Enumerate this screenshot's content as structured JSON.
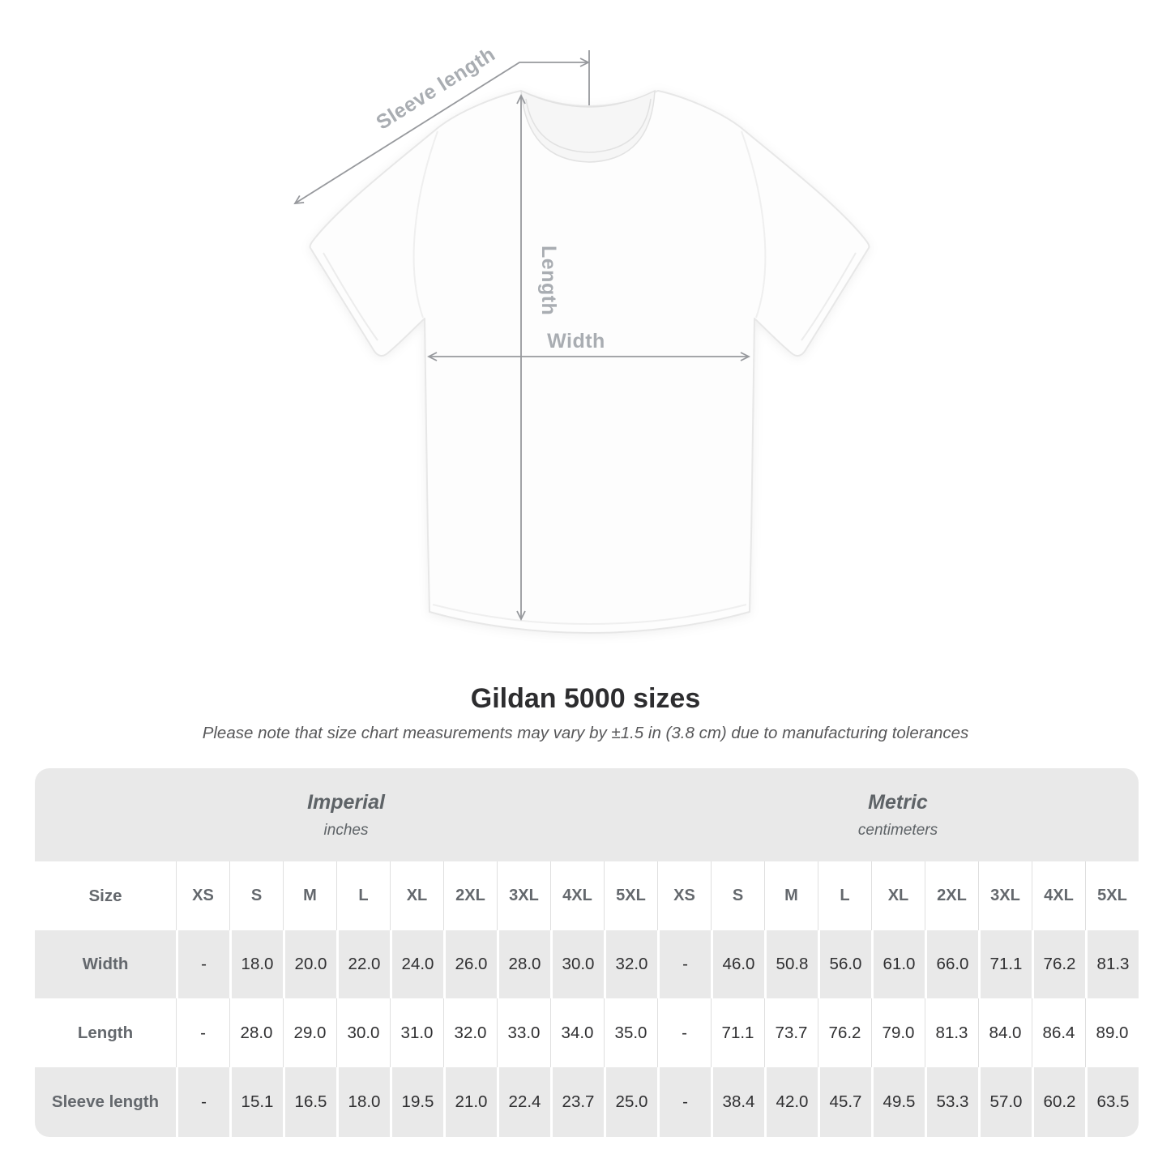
{
  "diagram": {
    "labels": {
      "sleeve_length": "Sleeve length",
      "length": "Length",
      "width": "Width"
    }
  },
  "title": "Gildan 5000 sizes",
  "note": "Please note that size chart measurements may vary by ±1.5 in (3.8 cm) due to manufacturing tolerances",
  "table": {
    "size_label": "Size",
    "groups": [
      {
        "name": "Imperial",
        "unit": "inches"
      },
      {
        "name": "Metric",
        "unit": "centimeters"
      }
    ],
    "sizes": [
      "XS",
      "S",
      "M",
      "L",
      "XL",
      "2XL",
      "3XL",
      "4XL",
      "5XL"
    ],
    "rows": [
      {
        "label": "Width",
        "imperial": [
          "-",
          "18.0",
          "20.0",
          "22.0",
          "24.0",
          "26.0",
          "28.0",
          "30.0",
          "32.0"
        ],
        "metric": [
          "-",
          "46.0",
          "50.8",
          "56.0",
          "61.0",
          "66.0",
          "71.1",
          "76.2",
          "81.3"
        ]
      },
      {
        "label": "Length",
        "imperial": [
          "-",
          "28.0",
          "29.0",
          "30.0",
          "31.0",
          "32.0",
          "33.0",
          "34.0",
          "35.0"
        ],
        "metric": [
          "-",
          "71.1",
          "73.7",
          "76.2",
          "79.0",
          "81.3",
          "84.0",
          "86.4",
          "89.0"
        ]
      },
      {
        "label": "Sleeve length",
        "imperial": [
          "-",
          "15.1",
          "16.5",
          "18.0",
          "19.5",
          "21.0",
          "22.4",
          "23.7",
          "25.0"
        ],
        "metric": [
          "-",
          "38.4",
          "42.0",
          "45.7",
          "49.5",
          "53.3",
          "57.0",
          "60.2",
          "63.5"
        ]
      }
    ]
  },
  "colors": {
    "table_band_gray": "#e9e9e9",
    "annotation_line": "#97999d",
    "annotation_label": "#a9adb2",
    "title_text": "#2d2d2f",
    "table_value_text": "#2f2f31",
    "table_label_text": "#64686d"
  }
}
